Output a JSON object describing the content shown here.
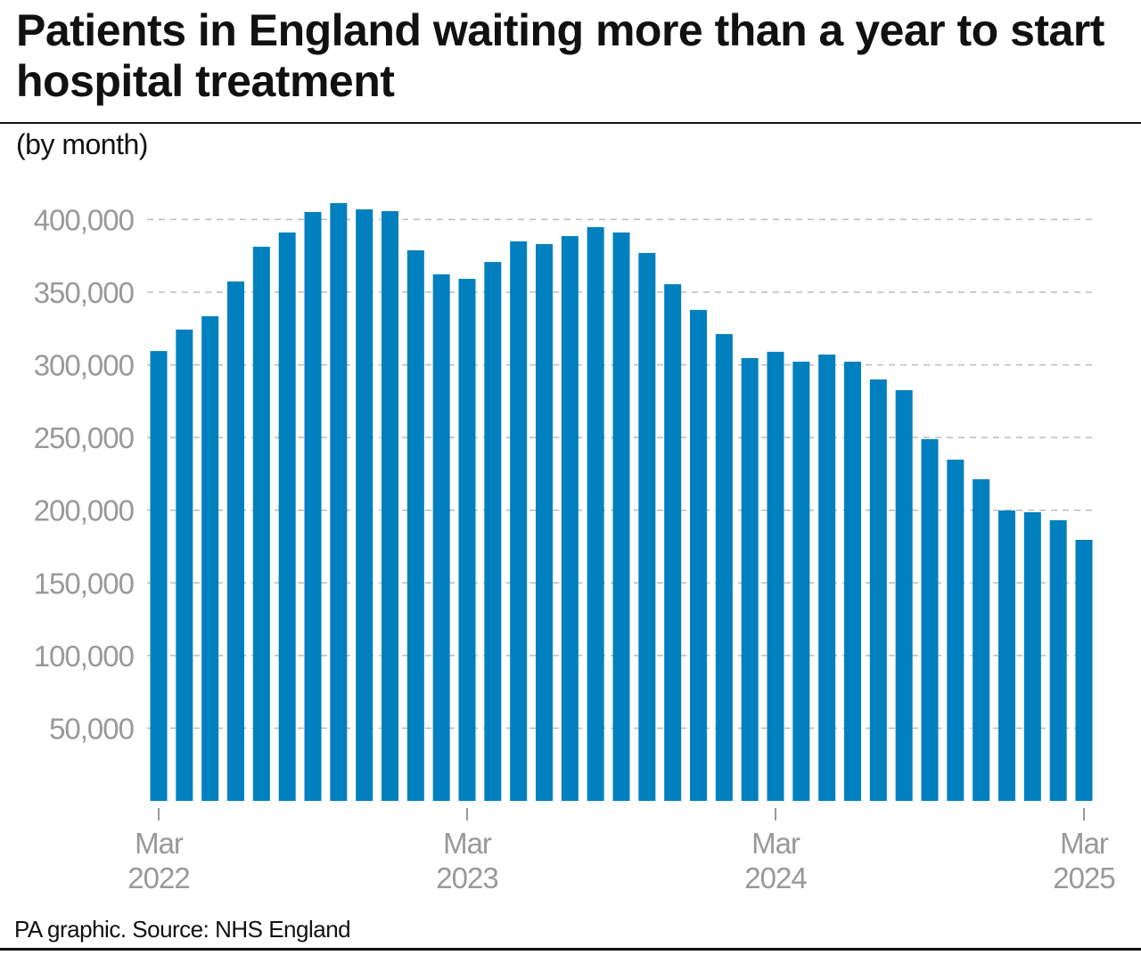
{
  "title": "Patients in England waiting more than a year to start hospital treatment",
  "subtitle": "(by month)",
  "source": "PA graphic. Source: NHS England",
  "chart_data": {
    "type": "bar",
    "title": "Patients in England waiting more than a year to start hospital treatment",
    "subtitle": "(by month)",
    "xlabel": "",
    "ylabel": "",
    "ylim": [
      0,
      420000
    ],
    "grid": true,
    "bar_color": "#0080bf",
    "categories": [
      "Mar 2022",
      "Apr 2022",
      "May 2022",
      "Jun 2022",
      "Jul 2022",
      "Aug 2022",
      "Sep 2022",
      "Oct 2022",
      "Nov 2022",
      "Dec 2022",
      "Jan 2023",
      "Feb 2023",
      "Mar 2023",
      "Apr 2023",
      "May 2023",
      "Jun 2023",
      "Jul 2023",
      "Aug 2023",
      "Sep 2023",
      "Oct 2023",
      "Nov 2023",
      "Dec 2023",
      "Jan 2024",
      "Feb 2024",
      "Mar 2024",
      "Apr 2024",
      "May 2024",
      "Jun 2024",
      "Jul 2024",
      "Aug 2024",
      "Sep 2024",
      "Oct 2024",
      "Nov 2024",
      "Dec 2024",
      "Jan 2025",
      "Feb 2025",
      "Mar 2025"
    ],
    "values": [
      309500,
      324300,
      333500,
      357400,
      381300,
      391100,
      405200,
      411300,
      407000,
      405800,
      378800,
      362300,
      359200,
      370800,
      385000,
      383100,
      388600,
      394800,
      391100,
      377000,
      355500,
      337800,
      321200,
      304700,
      309000,
      302200,
      307100,
      302200,
      290000,
      282600,
      248900,
      234800,
      221300,
      199800,
      198600,
      193100,
      179600
    ],
    "y_ticks": [
      {
        "value": 50000,
        "label": "50,000"
      },
      {
        "value": 100000,
        "label": "100,000"
      },
      {
        "value": 150000,
        "label": "150,000"
      },
      {
        "value": 200000,
        "label": "200,000"
      },
      {
        "value": 250000,
        "label": "250,000"
      },
      {
        "value": 300000,
        "label": "300,000"
      },
      {
        "value": 350000,
        "label": "350,000"
      },
      {
        "value": 400000,
        "label": "400,000"
      }
    ],
    "x_ticks": [
      {
        "index": 0,
        "month": "Mar",
        "year": "2022"
      },
      {
        "index": 12,
        "month": "Mar",
        "year": "2023"
      },
      {
        "index": 24,
        "month": "Mar",
        "year": "2024"
      },
      {
        "index": 36,
        "month": "Mar",
        "year": "2025"
      }
    ]
  }
}
